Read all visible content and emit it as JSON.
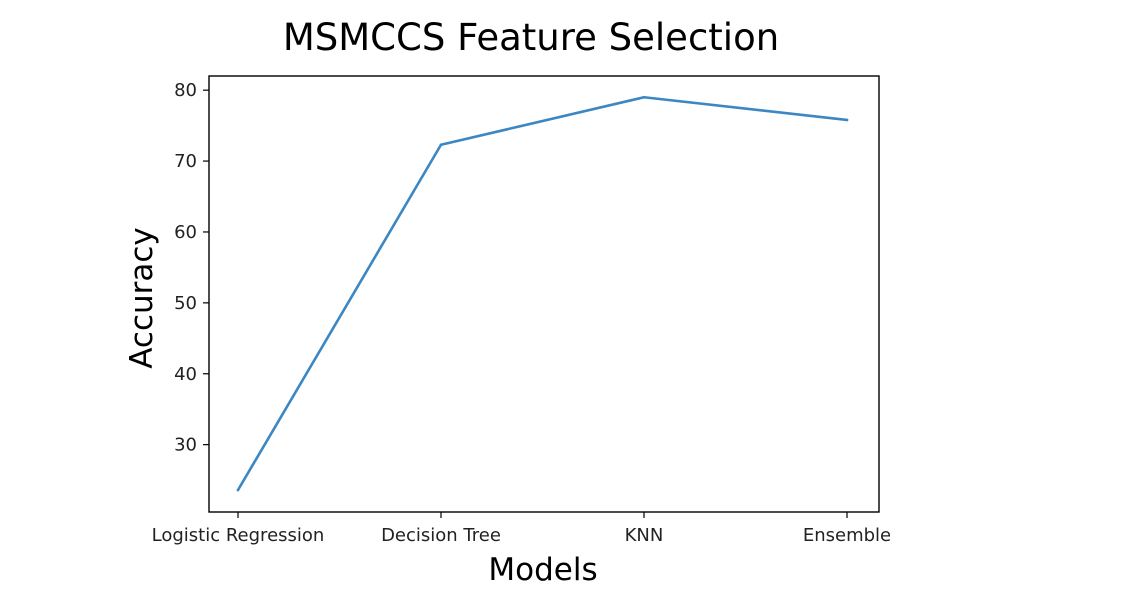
{
  "chart_data": {
    "type": "line",
    "title": "MSMCCS Feature Selection",
    "xlabel": "Models",
    "ylabel": "Accuracy",
    "categories": [
      "Logistic Regression",
      "Decision Tree",
      "KNN",
      "Ensemble"
    ],
    "series": [
      {
        "values": [
          23.6,
          72.3,
          79.0,
          75.8
        ],
        "color": "#3a87c4"
      }
    ],
    "yticks": [
      30,
      40,
      50,
      60,
      70,
      80
    ],
    "ylim": [
      20.5,
      82
    ],
    "grid": false,
    "legend": "none"
  }
}
